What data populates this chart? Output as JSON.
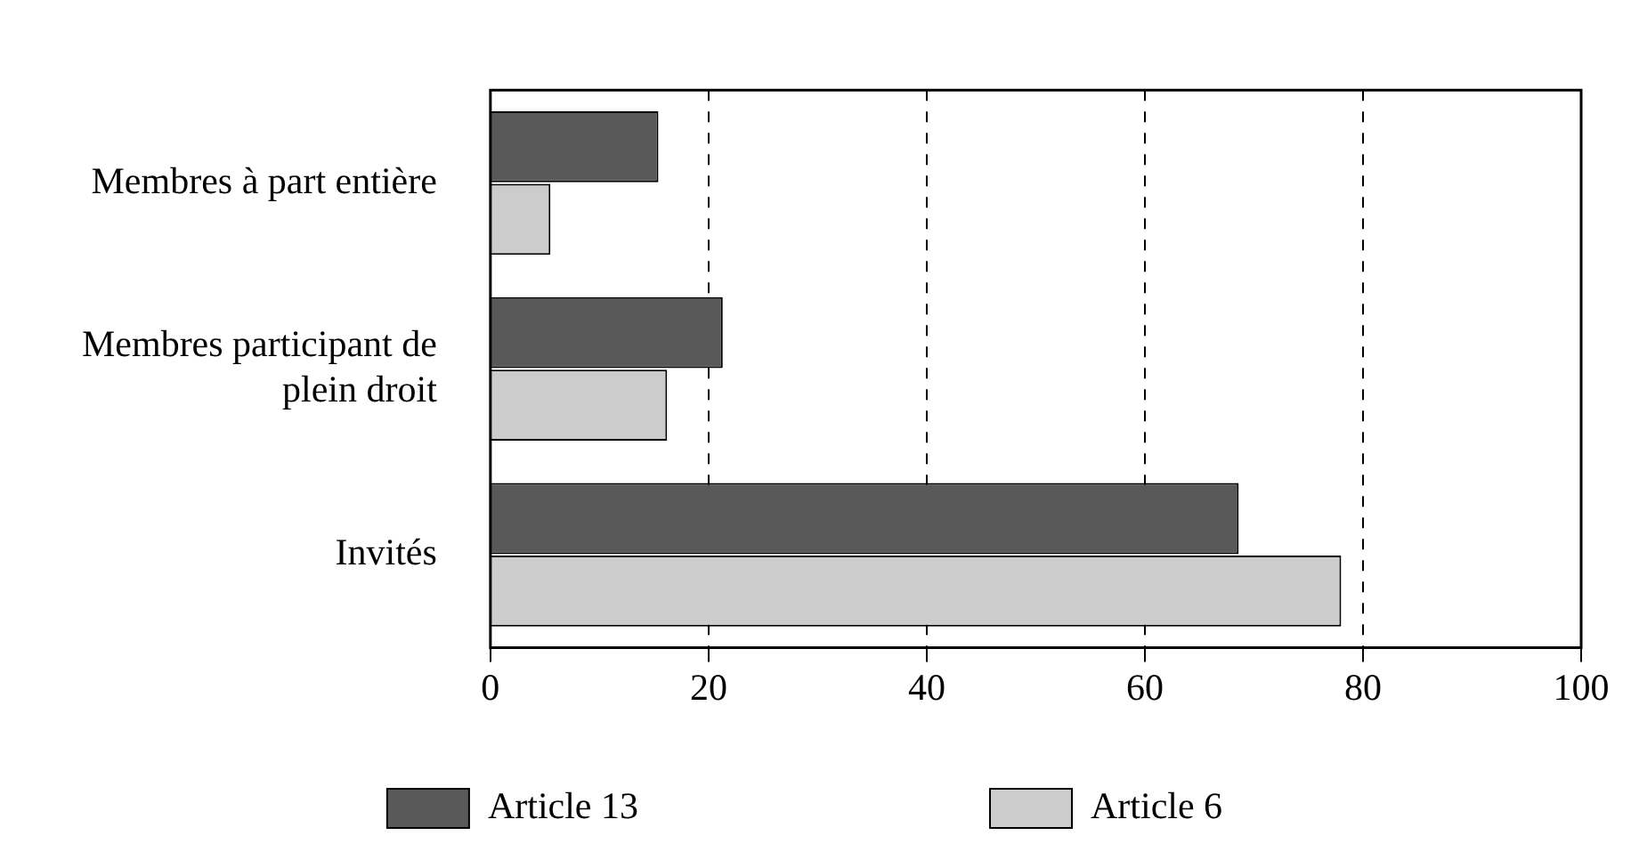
{
  "chart_data": {
    "type": "bar",
    "orientation": "horizontal",
    "categories": [
      "Membres à part entière",
      "Membres participant de plein droit",
      "Invités"
    ],
    "series": [
      {
        "name": "Article 13",
        "color": "#595959",
        "values": [
          15.4,
          21.3,
          68.6
        ]
      },
      {
        "name": "Article 6",
        "color": "#cccccc",
        "values": [
          5.5,
          16.2,
          78
        ]
      }
    ],
    "xlim": [
      0,
      100
    ],
    "xticks": [
      0,
      20,
      40,
      60,
      80,
      100
    ],
    "grid": "x",
    "legend": "bottom"
  }
}
